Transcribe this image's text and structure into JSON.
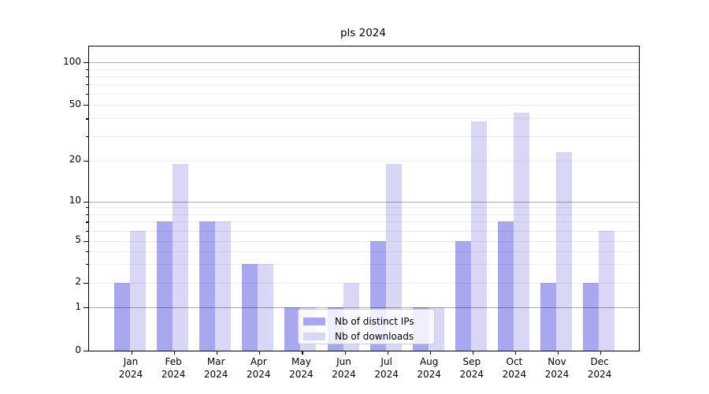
{
  "chart_data": {
    "type": "bar",
    "title": "pls 2024",
    "categories": [
      "Jan 2024",
      "Feb 2024",
      "Mar 2024",
      "Apr 2024",
      "May 2024",
      "Jun 2024",
      "Jul 2024",
      "Aug 2024",
      "Sep 2024",
      "Oct 2024",
      "Nov 2024",
      "Dec 2024"
    ],
    "series": [
      {
        "name": "Nb of distinct IPs",
        "color": "#a8a8f0",
        "values": [
          2,
          7,
          7,
          3,
          1,
          1,
          5,
          1,
          5,
          7,
          2,
          2
        ]
      },
      {
        "name": "Nb of downloads",
        "color": "#d8d8f6",
        "values": [
          6,
          19,
          7,
          3,
          1,
          2,
          19,
          1,
          38,
          44,
          23,
          6
        ]
      }
    ],
    "y_ticks": [
      0,
      1,
      2,
      5,
      10,
      20,
      50,
      100
    ],
    "ylim": [
      0,
      130
    ],
    "yscale": "log-like above 1 with 0 baseline",
    "xlabel": "",
    "ylabel": "",
    "grid": true,
    "legend_position": "lower center"
  },
  "colors": {
    "background": "#ffffff",
    "axis": "#000000",
    "major_grid": "#adadad",
    "minor_grid": "#ececec",
    "legend_border": "#cccccc"
  }
}
